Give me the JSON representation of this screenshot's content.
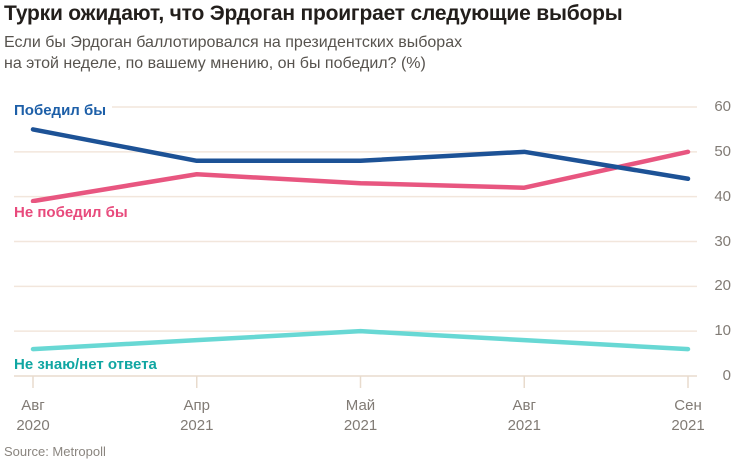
{
  "title": "Турки ожидают, что Эрдоган проиграет следующие выборы",
  "subtitle": {
    "line1": "Если бы Эрдоган баллотировался на президентских выборах",
    "line2": "на этой неделе, по вашему мнению, он бы победил? (%)"
  },
  "source": "Source: Metropoll",
  "chart_data": {
    "type": "line",
    "categories": [
      {
        "month": "Авг",
        "year": "2020"
      },
      {
        "month": "Апр",
        "year": "2021"
      },
      {
        "month": "Май",
        "year": "2021"
      },
      {
        "month": "Авг",
        "year": "2021"
      },
      {
        "month": "Сен",
        "year": "2021"
      }
    ],
    "series": [
      {
        "name": "Победил бы",
        "values": [
          55,
          48,
          48,
          50,
          44
        ],
        "color": "#1d5296",
        "label_color": "#1d5fa8"
      },
      {
        "name": "Не победил бы",
        "values": [
          39,
          45,
          43,
          42,
          50
        ],
        "color": "#e85680",
        "label_color": "#e84a7c"
      },
      {
        "name": "Не знаю/нет ответа",
        "values": [
          6,
          8,
          10,
          8,
          6
        ],
        "color": "#68d8d4",
        "label_color": "#10a6a2"
      }
    ],
    "y_ticks": [
      0,
      10,
      20,
      30,
      40,
      50,
      60
    ],
    "ylim": [
      0,
      60
    ],
    "xlabel": "",
    "ylabel": "",
    "grid": true,
    "y_axis_side": "right",
    "legend_position": "inline-labels",
    "colors": {
      "grid": "#f2e6dc",
      "axis": "#e8dbcd",
      "tick_label": "#817b75",
      "background": "#ffffff"
    }
  }
}
